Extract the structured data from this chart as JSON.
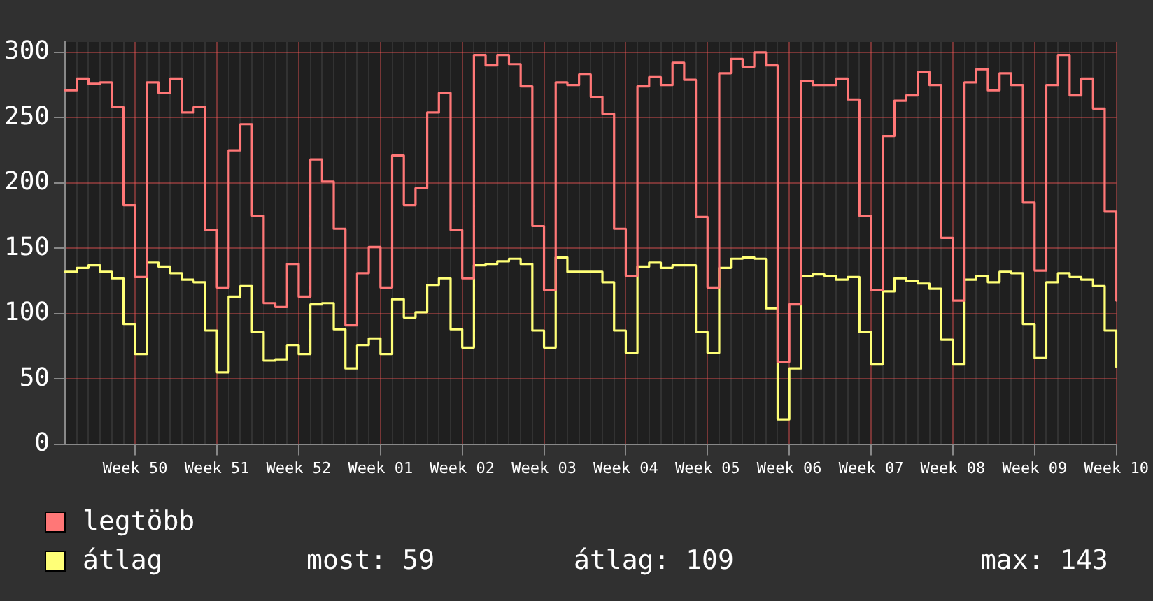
{
  "chart_data": {
    "type": "step",
    "categories": [
      null,
      null,
      null,
      null,
      null,
      null,
      "Week 50",
      null,
      null,
      null,
      null,
      null,
      null,
      "Week 51",
      null,
      null,
      null,
      null,
      null,
      null,
      "Week 52",
      null,
      null,
      null,
      null,
      null,
      null,
      "Week 01",
      null,
      null,
      null,
      null,
      null,
      null,
      "Week 02",
      null,
      null,
      null,
      null,
      null,
      null,
      "Week 03",
      null,
      null,
      null,
      null,
      null,
      null,
      "Week 04",
      null,
      null,
      null,
      null,
      null,
      null,
      "Week 05",
      null,
      null,
      null,
      null,
      null,
      null,
      "Week 06",
      null,
      null,
      null,
      null,
      null,
      null,
      "Week 07",
      null,
      null,
      null,
      null,
      null,
      null,
      "Week 08",
      null,
      null,
      null,
      null,
      null,
      null,
      "Week 09",
      null,
      null,
      null,
      null,
      null,
      null,
      "Week 10"
    ],
    "series": [
      {
        "name": "legtöbb",
        "color": "#ff7777",
        "values": [
          271,
          280,
          276,
          277,
          258,
          183,
          128,
          277,
          269,
          280,
          254,
          258,
          164,
          120,
          225,
          245,
          175,
          108,
          105,
          138,
          113,
          218,
          201,
          165,
          91,
          131,
          151,
          120,
          221,
          183,
          196,
          254,
          269,
          164,
          127,
          298,
          290,
          298,
          291,
          274,
          167,
          118,
          277,
          275,
          283,
          266,
          253,
          165,
          129,
          274,
          281,
          275,
          292,
          279,
          174,
          120,
          284,
          295,
          289,
          300,
          290,
          63,
          107,
          278,
          275,
          275,
          280,
          264,
          175,
          118,
          236,
          263,
          267,
          285,
          275,
          158,
          110,
          277,
          287,
          271,
          284,
          275,
          185,
          133,
          275,
          298,
          267,
          280,
          257,
          178,
          110
        ]
      },
      {
        "name": "átlag",
        "color": "#ffff77",
        "values": [
          132,
          135,
          137,
          132,
          127,
          92,
          69,
          139,
          136,
          131,
          126,
          124,
          87,
          55,
          113,
          121,
          86,
          64,
          65,
          76,
          69,
          107,
          108,
          88,
          58,
          76,
          81,
          69,
          111,
          97,
          101,
          122,
          127,
          88,
          74,
          137,
          138,
          140,
          142,
          138,
          87,
          74,
          143,
          132,
          132,
          132,
          124,
          87,
          70,
          136,
          139,
          135,
          137,
          137,
          86,
          70,
          135,
          142,
          143,
          142,
          104,
          19,
          58,
          129,
          130,
          129,
          126,
          128,
          86,
          61,
          117,
          127,
          125,
          123,
          119,
          80,
          61,
          126,
          129,
          124,
          132,
          131,
          92,
          66,
          124,
          131,
          128,
          126,
          121,
          87,
          59
        ]
      }
    ],
    "ylim": [
      0,
      308
    ],
    "yticks": [
      0,
      50,
      100,
      150,
      200,
      250,
      300
    ],
    "grid": true,
    "legend": "bottom left",
    "annotations": [
      "most: 59",
      "átlag: 109",
      "max: 143"
    ]
  }
}
